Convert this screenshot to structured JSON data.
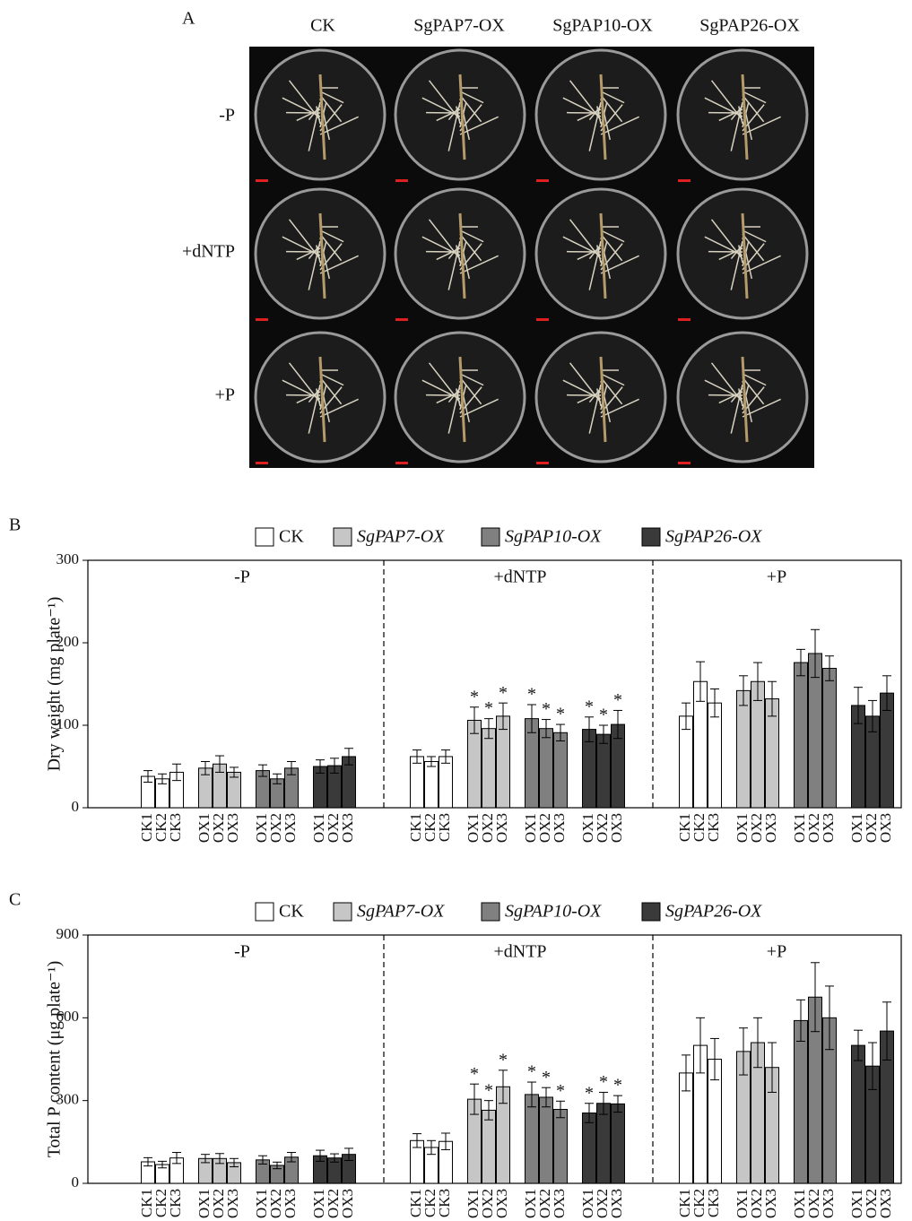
{
  "panel_a": {
    "label": "A",
    "columns": [
      "CK",
      "SgPAP7-OX",
      "SgPAP10-OX",
      "SgPAP26-OX"
    ],
    "rows": [
      "-P",
      "+dNTP",
      "+P"
    ]
  },
  "chart_data": [
    {
      "type": "bar",
      "panel_label": "B",
      "ylabel": "Dry weight (mg plate⁻¹)",
      "groups": [
        "-P",
        "+dNTP",
        "+P"
      ],
      "categories": [
        "CK1",
        "CK2",
        "CK3",
        "OX1",
        "OX2",
        "OX3",
        "OX1",
        "OX2",
        "OX3",
        "OX1",
        "OX2",
        "OX3",
        "CK1",
        "CK2",
        "CK3",
        "OX1",
        "OX2",
        "OX3",
        "OX1",
        "OX2",
        "OX3",
        "OX1",
        "OX2",
        "OX3",
        "CK1",
        "CK2",
        "CK3",
        "OX1",
        "OX2",
        "OX3",
        "OX1",
        "OX2",
        "OX3",
        "OX1",
        "OX2",
        "OX3"
      ],
      "ylim": [
        0,
        300
      ],
      "yticks": [
        0,
        100,
        200,
        300
      ],
      "series": [
        {
          "name": "CK",
          "color": "#ffffff",
          "values": [
            38,
            35,
            43,
            null,
            null,
            null,
            null,
            null,
            null,
            null,
            null,
            null,
            62,
            56,
            62,
            null,
            null,
            null,
            null,
            null,
            null,
            null,
            null,
            null,
            111,
            153,
            127,
            null,
            null,
            null,
            null,
            null,
            null,
            null,
            null,
            null
          ],
          "errors": [
            7,
            6,
            10,
            null,
            null,
            null,
            null,
            null,
            null,
            null,
            null,
            null,
            8,
            6,
            8,
            null,
            null,
            null,
            null,
            null,
            null,
            null,
            null,
            null,
            16,
            24,
            17,
            null,
            null,
            null,
            null,
            null,
            null,
            null,
            null,
            null
          ],
          "markers": [
            null,
            null,
            null,
            null,
            null,
            null,
            null,
            null,
            null,
            null,
            null,
            null,
            null,
            null,
            null,
            null,
            null,
            null,
            null,
            null,
            null,
            null,
            null,
            null,
            null,
            null,
            null,
            null,
            null,
            null,
            null,
            null,
            null,
            null,
            null,
            null
          ]
        },
        {
          "name": "SgPAP7-OX",
          "color": "#c6c6c6",
          "values": [
            null,
            null,
            null,
            48,
            53,
            43,
            null,
            null,
            null,
            null,
            null,
            null,
            null,
            null,
            null,
            106,
            96,
            111,
            null,
            null,
            null,
            null,
            null,
            null,
            null,
            null,
            null,
            142,
            153,
            132,
            null,
            null,
            null,
            null,
            null,
            null
          ],
          "errors": [
            null,
            null,
            null,
            8,
            10,
            6,
            null,
            null,
            null,
            null,
            null,
            null,
            null,
            null,
            null,
            16,
            12,
            16,
            null,
            null,
            null,
            null,
            null,
            null,
            null,
            null,
            null,
            18,
            23,
            21,
            null,
            null,
            null,
            null,
            null,
            null
          ],
          "markers": [
            null,
            null,
            null,
            null,
            null,
            null,
            null,
            null,
            null,
            null,
            null,
            null,
            null,
            null,
            null,
            "*",
            "*",
            "*",
            null,
            null,
            null,
            null,
            null,
            null,
            null,
            null,
            null,
            null,
            null,
            null,
            null,
            null,
            null,
            null,
            null,
            null
          ]
        },
        {
          "name": "SgPAP10-OX",
          "color": "#808080",
          "values": [
            null,
            null,
            null,
            null,
            null,
            null,
            45,
            35,
            48,
            null,
            null,
            null,
            null,
            null,
            null,
            null,
            null,
            null,
            108,
            96,
            91,
            null,
            null,
            null,
            null,
            null,
            null,
            null,
            null,
            null,
            176,
            187,
            169,
            null,
            null,
            null
          ],
          "errors": [
            null,
            null,
            null,
            null,
            null,
            null,
            7,
            6,
            8,
            null,
            null,
            null,
            null,
            null,
            null,
            null,
            null,
            null,
            17,
            11,
            10,
            null,
            null,
            null,
            null,
            null,
            null,
            null,
            null,
            null,
            16,
            29,
            15,
            null,
            null,
            null
          ],
          "markers": [
            null,
            null,
            null,
            null,
            null,
            null,
            null,
            null,
            null,
            null,
            null,
            null,
            null,
            null,
            null,
            null,
            null,
            null,
            "*",
            "*",
            "*",
            null,
            null,
            null,
            null,
            null,
            null,
            null,
            null,
            null,
            null,
            null,
            null,
            null,
            null,
            null
          ]
        },
        {
          "name": "SgPAP26-OX",
          "color": "#3a3a3a",
          "values": [
            null,
            null,
            null,
            null,
            null,
            null,
            null,
            null,
            null,
            50,
            51,
            62,
            null,
            null,
            null,
            null,
            null,
            null,
            null,
            null,
            null,
            95,
            89,
            101,
            null,
            null,
            null,
            null,
            null,
            null,
            null,
            null,
            null,
            124,
            111,
            139
          ],
          "errors": [
            null,
            null,
            null,
            null,
            null,
            null,
            null,
            null,
            null,
            8,
            9,
            10,
            null,
            null,
            null,
            null,
            null,
            null,
            null,
            null,
            null,
            15,
            11,
            17,
            null,
            null,
            null,
            null,
            null,
            null,
            null,
            null,
            null,
            22,
            19,
            21
          ],
          "markers": [
            null,
            null,
            null,
            null,
            null,
            null,
            null,
            null,
            null,
            null,
            null,
            null,
            null,
            null,
            null,
            null,
            null,
            null,
            null,
            null,
            null,
            "*",
            "*",
            "*",
            null,
            null,
            null,
            null,
            null,
            null,
            null,
            null,
            null,
            null,
            null,
            null
          ]
        }
      ]
    },
    {
      "type": "bar",
      "panel_label": "C",
      "ylabel": "Total P content (μg plate⁻¹)",
      "groups": [
        "-P",
        "+dNTP",
        "+P"
      ],
      "categories": [
        "CK1",
        "CK2",
        "CK3",
        "OX1",
        "OX2",
        "OX3",
        "OX1",
        "OX2",
        "OX3",
        "OX1",
        "OX2",
        "OX3",
        "CK1",
        "CK2",
        "CK3",
        "OX1",
        "OX2",
        "OX3",
        "OX1",
        "OX2",
        "OX3",
        "OX1",
        "OX2",
        "OX3",
        "CK1",
        "CK2",
        "CK3",
        "OX1",
        "OX2",
        "OX3",
        "OX1",
        "OX2",
        "OX3",
        "OX1",
        "OX2",
        "OX3"
      ],
      "ylim": [
        0,
        900
      ],
      "yticks": [
        0,
        300,
        600,
        900
      ],
      "series": [
        {
          "name": "CK",
          "color": "#ffffff",
          "values": [
            78,
            68,
            92,
            null,
            null,
            null,
            null,
            null,
            null,
            null,
            null,
            null,
            155,
            130,
            152,
            null,
            null,
            null,
            null,
            null,
            null,
            null,
            null,
            null,
            400,
            500,
            450,
            null,
            null,
            null,
            null,
            null,
            null,
            null,
            null,
            null
          ],
          "errors": [
            15,
            12,
            20,
            null,
            null,
            null,
            null,
            null,
            null,
            null,
            null,
            null,
            25,
            25,
            30,
            null,
            null,
            null,
            null,
            null,
            null,
            null,
            null,
            null,
            65,
            100,
            75,
            null,
            null,
            null,
            null,
            null,
            null,
            null,
            null,
            null
          ],
          "markers": [
            null,
            null,
            null,
            null,
            null,
            null,
            null,
            null,
            null,
            null,
            null,
            null,
            null,
            null,
            null,
            null,
            null,
            null,
            null,
            null,
            null,
            null,
            null,
            null,
            null,
            null,
            null,
            null,
            null,
            null,
            null,
            null,
            null,
            null,
            null,
            null
          ]
        },
        {
          "name": "SgPAP7-OX",
          "color": "#c6c6c6",
          "values": [
            null,
            null,
            null,
            90,
            90,
            75,
            null,
            null,
            null,
            null,
            null,
            null,
            null,
            null,
            null,
            305,
            265,
            350,
            null,
            null,
            null,
            null,
            null,
            null,
            null,
            null,
            null,
            478,
            510,
            420,
            null,
            null,
            null,
            null,
            null,
            null
          ],
          "errors": [
            null,
            null,
            null,
            15,
            18,
            15,
            null,
            null,
            null,
            null,
            null,
            null,
            null,
            null,
            null,
            55,
            35,
            60,
            null,
            null,
            null,
            null,
            null,
            null,
            null,
            null,
            null,
            85,
            90,
            90,
            null,
            null,
            null,
            null,
            null,
            null
          ],
          "markers": [
            null,
            null,
            null,
            null,
            null,
            null,
            null,
            null,
            null,
            null,
            null,
            null,
            null,
            null,
            null,
            "*",
            "*",
            "*",
            null,
            null,
            null,
            null,
            null,
            null,
            null,
            null,
            null,
            null,
            null,
            null,
            null,
            null,
            null,
            null,
            null,
            null
          ]
        },
        {
          "name": "SgPAP10-OX",
          "color": "#808080",
          "values": [
            null,
            null,
            null,
            null,
            null,
            null,
            85,
            65,
            95,
            null,
            null,
            null,
            null,
            null,
            null,
            null,
            null,
            null,
            322,
            312,
            268,
            null,
            null,
            null,
            null,
            null,
            null,
            null,
            null,
            null,
            590,
            675,
            600,
            null,
            null,
            null
          ],
          "errors": [
            null,
            null,
            null,
            null,
            null,
            null,
            15,
            12,
            17,
            null,
            null,
            null,
            null,
            null,
            null,
            null,
            null,
            null,
            45,
            35,
            30,
            null,
            null,
            null,
            null,
            null,
            null,
            null,
            null,
            null,
            75,
            125,
            115,
            null,
            null,
            null
          ],
          "markers": [
            null,
            null,
            null,
            null,
            null,
            null,
            null,
            null,
            null,
            null,
            null,
            null,
            null,
            null,
            null,
            null,
            null,
            null,
            "*",
            "*",
            "*",
            null,
            null,
            null,
            null,
            null,
            null,
            null,
            null,
            null,
            null,
            null,
            null,
            null,
            null,
            null
          ]
        },
        {
          "name": "SgPAP26-OX",
          "color": "#3a3a3a",
          "values": [
            null,
            null,
            null,
            null,
            null,
            null,
            null,
            null,
            null,
            100,
            92,
            105,
            null,
            null,
            null,
            null,
            null,
            null,
            null,
            null,
            null,
            255,
            290,
            288,
            null,
            null,
            null,
            null,
            null,
            null,
            null,
            null,
            null,
            500,
            425,
            552
          ],
          "errors": [
            null,
            null,
            null,
            null,
            null,
            null,
            null,
            null,
            null,
            20,
            15,
            22,
            null,
            null,
            null,
            null,
            null,
            null,
            null,
            null,
            null,
            35,
            40,
            30,
            null,
            null,
            null,
            null,
            null,
            null,
            null,
            null,
            null,
            55,
            85,
            105
          ],
          "markers": [
            null,
            null,
            null,
            null,
            null,
            null,
            null,
            null,
            null,
            null,
            null,
            null,
            null,
            null,
            null,
            null,
            null,
            null,
            null,
            null,
            null,
            "*",
            "*",
            "*",
            null,
            null,
            null,
            null,
            null,
            null,
            null,
            null,
            null,
            null,
            null,
            null
          ]
        }
      ]
    }
  ]
}
